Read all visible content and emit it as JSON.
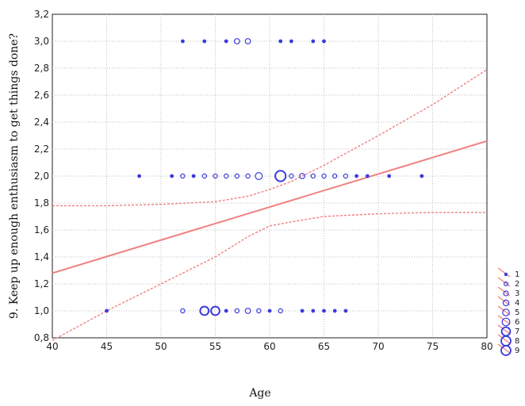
{
  "chart_data": {
    "type": "scatter",
    "xlabel": "Age",
    "ylabel": "9. Keep up enough enthusiasm to get things done?",
    "xlim": [
      40,
      80
    ],
    "ylim": [
      0.8,
      3.2
    ],
    "x_ticks": [
      "40",
      "45",
      "50",
      "55",
      "60",
      "65",
      "70",
      "75",
      "80"
    ],
    "y_ticks": [
      "0,8",
      "1,0",
      "1,2",
      "1,4",
      "1,6",
      "1,8",
      "2,0",
      "2,2",
      "2,4",
      "2,6",
      "2,8",
      "3,0",
      "3,2"
    ],
    "grid": true,
    "legend_position": "bottom-right",
    "marker_color": "#3b3bdc",
    "line_color": "#f08080",
    "legend": [
      "1",
      "2",
      "3",
      "4",
      "5",
      "6",
      "7",
      "8",
      "9"
    ],
    "fit_line": {
      "x": [
        40,
        80
      ],
      "y": [
        1.28,
        2.26
      ]
    },
    "confidence_upper": {
      "x": [
        40,
        45,
        50,
        55,
        58,
        60,
        62,
        65,
        70,
        75,
        80
      ],
      "y": [
        1.78,
        1.78,
        1.79,
        1.81,
        1.85,
        1.9,
        1.96,
        2.08,
        2.3,
        2.53,
        2.79
      ]
    },
    "confidence_lower": {
      "x": [
        40,
        45,
        50,
        55,
        58,
        60,
        62,
        65,
        70,
        75,
        80
      ],
      "y": [
        0.78,
        1.0,
        1.2,
        1.4,
        1.55,
        1.63,
        1.66,
        1.7,
        1.72,
        1.73,
        1.73
      ]
    },
    "points": [
      {
        "x": 52,
        "y": 3.0,
        "count": 1
      },
      {
        "x": 54,
        "y": 3.0,
        "count": 1
      },
      {
        "x": 56,
        "y": 3.0,
        "count": 1
      },
      {
        "x": 57,
        "y": 3.0,
        "count": 3
      },
      {
        "x": 58,
        "y": 3.0,
        "count": 3
      },
      {
        "x": 61,
        "y": 3.0,
        "count": 1
      },
      {
        "x": 62,
        "y": 3.0,
        "count": 1
      },
      {
        "x": 64,
        "y": 3.0,
        "count": 1
      },
      {
        "x": 65,
        "y": 3.0,
        "count": 1
      },
      {
        "x": 48,
        "y": 2.0,
        "count": 1
      },
      {
        "x": 51,
        "y": 2.0,
        "count": 1
      },
      {
        "x": 52,
        "y": 2.0,
        "count": 2
      },
      {
        "x": 53,
        "y": 2.0,
        "count": 1
      },
      {
        "x": 54,
        "y": 2.0,
        "count": 2
      },
      {
        "x": 55,
        "y": 2.0,
        "count": 2
      },
      {
        "x": 56,
        "y": 2.0,
        "count": 2
      },
      {
        "x": 57,
        "y": 2.0,
        "count": 2
      },
      {
        "x": 58,
        "y": 2.0,
        "count": 2
      },
      {
        "x": 59,
        "y": 2.0,
        "count": 4
      },
      {
        "x": 61,
        "y": 2.0,
        "count": 9
      },
      {
        "x": 62,
        "y": 2.0,
        "count": 2
      },
      {
        "x": 63,
        "y": 2.0,
        "count": 3
      },
      {
        "x": 64,
        "y": 2.0,
        "count": 2
      },
      {
        "x": 65,
        "y": 2.0,
        "count": 2
      },
      {
        "x": 66,
        "y": 2.0,
        "count": 2
      },
      {
        "x": 67,
        "y": 2.0,
        "count": 2
      },
      {
        "x": 68,
        "y": 2.0,
        "count": 1
      },
      {
        "x": 69,
        "y": 2.0,
        "count": 1
      },
      {
        "x": 71,
        "y": 2.0,
        "count": 1
      },
      {
        "x": 74,
        "y": 2.0,
        "count": 1
      },
      {
        "x": 45,
        "y": 1.0,
        "count": 1
      },
      {
        "x": 52,
        "y": 1.0,
        "count": 2
      },
      {
        "x": 54,
        "y": 1.0,
        "count": 6
      },
      {
        "x": 55,
        "y": 1.0,
        "count": 6
      },
      {
        "x": 56,
        "y": 1.0,
        "count": 1
      },
      {
        "x": 57,
        "y": 1.0,
        "count": 2
      },
      {
        "x": 58,
        "y": 1.0,
        "count": 3
      },
      {
        "x": 59,
        "y": 1.0,
        "count": 2
      },
      {
        "x": 60,
        "y": 1.0,
        "count": 1
      },
      {
        "x": 61,
        "y": 1.0,
        "count": 2
      },
      {
        "x": 63,
        "y": 1.0,
        "count": 1
      },
      {
        "x": 64,
        "y": 1.0,
        "count": 1
      },
      {
        "x": 65,
        "y": 1.0,
        "count": 1
      },
      {
        "x": 66,
        "y": 1.0,
        "count": 1
      },
      {
        "x": 67,
        "y": 1.0,
        "count": 1
      }
    ]
  }
}
